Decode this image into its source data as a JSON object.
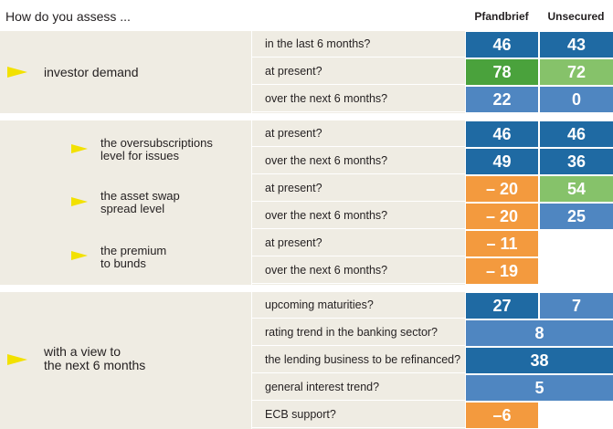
{
  "header": {
    "title": "How do you assess ...",
    "col_pfandbrief": "Pfandbrief",
    "col_unsecured": "Unsecured"
  },
  "colors": {
    "dark_blue": "#1f6aa3",
    "mid_blue": "#4f86c1",
    "dark_green": "#4aa23c",
    "light_green": "#86c26a",
    "orange": "#f39a3e",
    "band": "#efece3"
  },
  "topics": {
    "investor_demand": "investor demand",
    "oversub": [
      "the oversubscriptions",
      "level for issues"
    ],
    "asset_swap": [
      "the asset swap",
      "spread level"
    ],
    "premium": [
      "the premium",
      "to bunds"
    ],
    "view": [
      "with a view to",
      "the next 6 months"
    ]
  },
  "chart_data": {
    "type": "table",
    "title": "How do you assess ...",
    "columns": [
      "Pfandbrief",
      "Unsecured"
    ],
    "groups": [
      {
        "topic": "investor demand",
        "rows": [
          {
            "question": "in the last 6 months?",
            "pfandbrief": 46,
            "unsecured": 43,
            "colors": [
              "dark_blue",
              "dark_blue"
            ]
          },
          {
            "question": "at present?",
            "pfandbrief": 78,
            "unsecured": 72,
            "colors": [
              "dark_green",
              "light_green"
            ]
          },
          {
            "question": "over the next 6 months?",
            "pfandbrief": 22,
            "unsecured": 0,
            "colors": [
              "mid_blue",
              "mid_blue"
            ]
          }
        ]
      },
      {
        "topic": "the oversubscriptions level for issues",
        "rows": [
          {
            "question": "at present?",
            "pfandbrief": 46,
            "unsecured": 46,
            "colors": [
              "dark_blue",
              "dark_blue"
            ]
          },
          {
            "question": "over the next 6 months?",
            "pfandbrief": 49,
            "unsecured": 36,
            "colors": [
              "dark_blue",
              "dark_blue"
            ]
          }
        ]
      },
      {
        "topic": "the asset swap spread level",
        "rows": [
          {
            "question": "at present?",
            "pfandbrief": "– 20",
            "unsecured": 54,
            "colors": [
              "orange",
              "light_green"
            ]
          },
          {
            "question": "over the next 6 months?",
            "pfandbrief": "– 20",
            "unsecured": 25,
            "colors": [
              "orange",
              "mid_blue"
            ]
          }
        ]
      },
      {
        "topic": "the premium to bunds",
        "rows": [
          {
            "question": "at present?",
            "pfandbrief": "– 11",
            "unsecured": null,
            "colors": [
              "orange",
              null
            ]
          },
          {
            "question": "over the next 6 months?",
            "pfandbrief": "– 19",
            "unsecured": null,
            "colors": [
              "orange",
              null
            ]
          }
        ]
      },
      {
        "topic": "with a view to the next 6 months",
        "rows": [
          {
            "question": "upcoming maturities?",
            "pfandbrief": 27,
            "unsecured": 7,
            "colors": [
              "dark_blue",
              "mid_blue"
            ]
          },
          {
            "question": "rating trend in the banking sector?",
            "combined": 8,
            "colors": [
              "mid_blue"
            ]
          },
          {
            "question": "the lending business to be refinanced?",
            "combined": 38,
            "colors": [
              "dark_blue"
            ]
          },
          {
            "question": "general interest trend?",
            "combined": 5,
            "colors": [
              "mid_blue"
            ]
          },
          {
            "question": "ECB support?",
            "pfandbrief": "–6",
            "colors": [
              "orange"
            ]
          }
        ]
      }
    ]
  }
}
